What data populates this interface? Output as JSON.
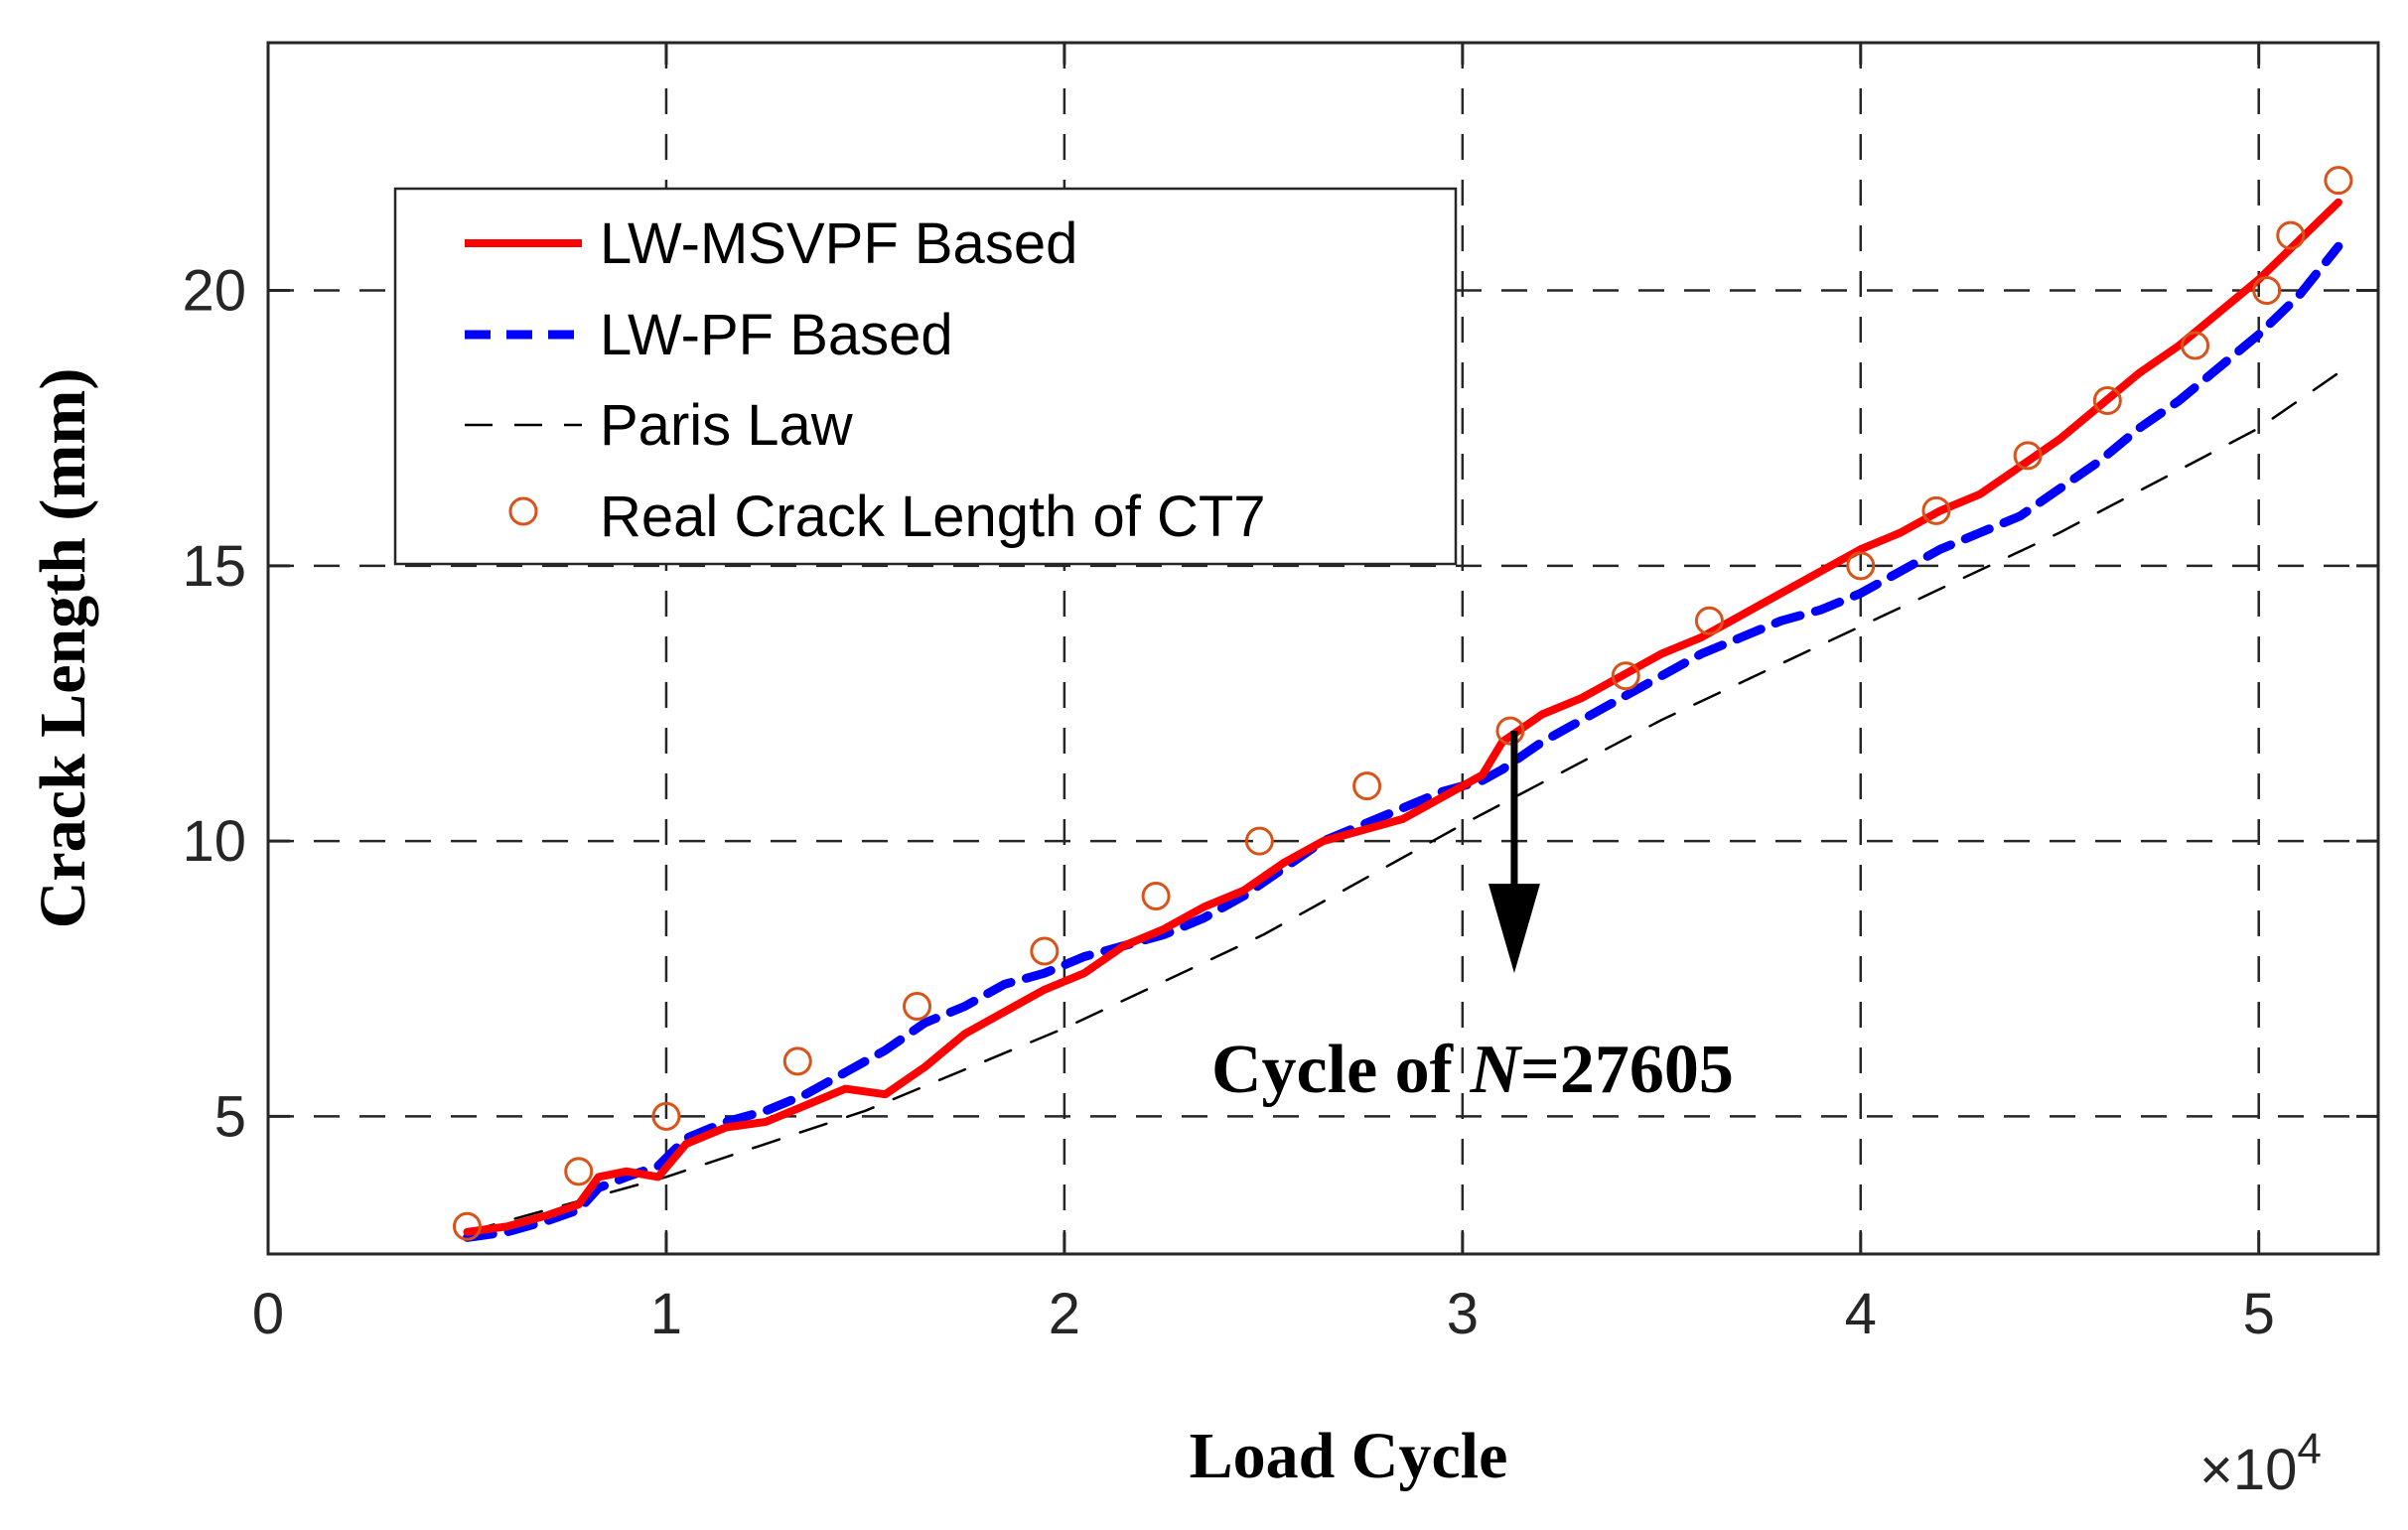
{
  "chart_data": {
    "type": "line",
    "title": "",
    "xlabel": "Load Cycle",
    "ylabel": "Crack Length (mm)",
    "x_multiplier_label": "×10",
    "x_multiplier_exp": "4",
    "xlim": [
      0,
      53000
    ],
    "ylim": [
      2.5,
      24.5
    ],
    "x_ticks": [
      0,
      10000,
      20000,
      30000,
      40000,
      50000
    ],
    "x_tick_labels": [
      "0",
      "1",
      "2",
      "3",
      "4",
      "5"
    ],
    "y_ticks": [
      5,
      10,
      15,
      20
    ],
    "y_tick_labels": [
      "5",
      "10",
      "15",
      "20"
    ],
    "grid": true,
    "grid_style": "dashed",
    "legend_position": "top-left",
    "colors": {
      "msvpf": "#ff0000",
      "pf": "#0000ff",
      "paris": "#000000",
      "real": "#d95319"
    },
    "series": [
      {
        "name": "LW-MSVPF Based",
        "style": "solid",
        "x": [
          5000,
          6000,
          7000,
          7800,
          8300,
          9000,
          9800,
          10500,
          11500,
          12500,
          13500,
          14500,
          15500,
          16500,
          17500,
          18500,
          19500,
          20500,
          21500,
          22500,
          23500,
          24500,
          25500,
          26500,
          27500,
          28500,
          29500,
          30500,
          31000,
          32000,
          33000,
          34000,
          35000,
          36000,
          37000,
          38000,
          39000,
          40000,
          41000,
          42000,
          43000,
          44000,
          45000,
          46000,
          47000,
          48000,
          49000,
          50000,
          51000,
          52000
        ],
        "y": [
          2.9,
          3.0,
          3.2,
          3.4,
          3.9,
          4.0,
          3.9,
          4.5,
          4.8,
          4.9,
          5.2,
          5.5,
          5.4,
          5.9,
          6.5,
          6.9,
          7.3,
          7.6,
          8.1,
          8.4,
          8.8,
          9.1,
          9.6,
          10.0,
          10.2,
          10.4,
          10.8,
          11.2,
          11.8,
          12.3,
          12.6,
          13.0,
          13.4,
          13.7,
          14.1,
          14.5,
          14.9,
          15.3,
          15.6,
          16.0,
          16.3,
          16.8,
          17.3,
          17.9,
          18.5,
          19.0,
          19.6,
          20.2,
          20.9,
          21.6
        ]
      },
      {
        "name": "LW-PF Based",
        "style": "dashed",
        "x": [
          5000,
          6000,
          7000,
          7800,
          8300,
          9000,
          9800,
          10500,
          11500,
          12500,
          13500,
          14500,
          15500,
          16500,
          17500,
          18500,
          19500,
          20500,
          21500,
          22500,
          23500,
          24500,
          25500,
          26500,
          27500,
          28500,
          29500,
          30500,
          31000,
          32000,
          33000,
          34000,
          35000,
          36000,
          37000,
          38000,
          39000,
          40000,
          41000,
          42000,
          43000,
          44000,
          45000,
          46000,
          47000,
          48000,
          49000,
          50000,
          51000,
          52000
        ],
        "y": [
          2.8,
          2.9,
          3.1,
          3.3,
          3.7,
          3.9,
          4.1,
          4.6,
          4.9,
          5.1,
          5.4,
          5.8,
          6.2,
          6.7,
          7.0,
          7.4,
          7.6,
          7.9,
          8.1,
          8.3,
          8.6,
          9.0,
          9.5,
          10.0,
          10.3,
          10.6,
          10.9,
          11.1,
          11.3,
          11.8,
          12.2,
          12.6,
          13.0,
          13.4,
          13.7,
          14.0,
          14.2,
          14.5,
          14.9,
          15.3,
          15.6,
          15.9,
          16.4,
          16.9,
          17.5,
          18.0,
          18.6,
          19.2,
          19.9,
          20.8
        ]
      },
      {
        "name": "Paris Law",
        "style": "thin-dashed",
        "x": [
          5000,
          10000,
          15000,
          20000,
          25000,
          30000,
          35000,
          40000,
          45000,
          50000,
          52000
        ],
        "y": [
          2.9,
          3.9,
          5.1,
          6.6,
          8.3,
          10.3,
          12.2,
          13.9,
          15.6,
          17.5,
          18.5
        ]
      },
      {
        "name": "Real Crack Length of CT7",
        "style": "marker-circle",
        "x": [
          5000,
          7800,
          10000,
          13300,
          16300,
          19500,
          22300,
          24900,
          27600,
          31200,
          34100,
          36200,
          40000,
          41900,
          44200,
          46200,
          48400,
          50200,
          50800,
          52000
        ],
        "y": [
          3,
          4,
          5,
          6,
          7,
          8,
          9,
          10,
          11,
          12,
          13,
          14,
          15,
          16,
          17,
          18,
          19,
          20,
          21,
          22
        ]
      }
    ],
    "annotations": [
      {
        "text_prefix": "Cycle of ",
        "text_italic": "N",
        "text_suffix": "=27605",
        "arrow_x": 31300,
        "arrow_from_y": 12.0,
        "arrow_to_y": 7.6
      }
    ]
  }
}
